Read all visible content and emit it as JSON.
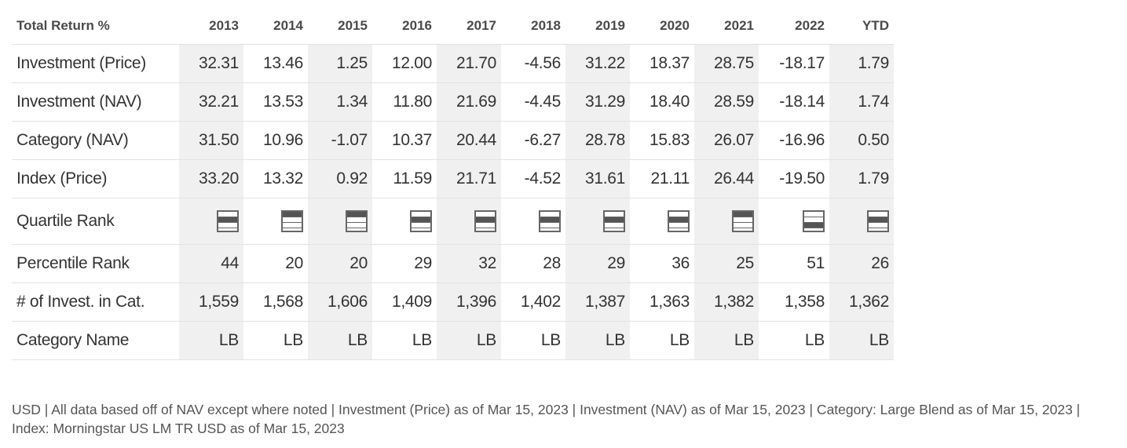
{
  "table": {
    "header_label": "Total Return %",
    "years": [
      "2013",
      "2014",
      "2015",
      "2016",
      "2017",
      "2018",
      "2019",
      "2020",
      "2021",
      "2022",
      "YTD"
    ],
    "shaded_columns": [
      0,
      2,
      4,
      6,
      8,
      10
    ],
    "rows": [
      {
        "label": "Investment (Price)",
        "values": [
          "32.31",
          "13.46",
          "1.25",
          "12.00",
          "21.70",
          "-4.56",
          "31.22",
          "18.37",
          "28.75",
          "-18.17",
          "1.79"
        ]
      },
      {
        "label": "Investment (NAV)",
        "values": [
          "32.21",
          "13.53",
          "1.34",
          "11.80",
          "21.69",
          "-4.45",
          "31.29",
          "18.40",
          "28.59",
          "-18.14",
          "1.74"
        ]
      },
      {
        "label": "Category (NAV)",
        "values": [
          "31.50",
          "10.96",
          "-1.07",
          "10.37",
          "20.44",
          "-6.27",
          "28.78",
          "15.83",
          "26.07",
          "-16.96",
          "0.50"
        ]
      },
      {
        "label": "Index (Price)",
        "values": [
          "33.20",
          "13.32",
          "0.92",
          "11.59",
          "21.71",
          "-4.52",
          "31.61",
          "21.11",
          "26.44",
          "-19.50",
          "1.79"
        ]
      }
    ],
    "quartile": {
      "label": "Quartile Rank",
      "icon_name": "quartile-rank-icon",
      "values": [
        2,
        1,
        1,
        2,
        2,
        2,
        2,
        2,
        1,
        3,
        2
      ]
    },
    "rows_after": [
      {
        "label": "Percentile Rank",
        "values": [
          "44",
          "20",
          "20",
          "29",
          "32",
          "28",
          "29",
          "36",
          "25",
          "51",
          "26"
        ]
      },
      {
        "label": "# of Invest. in Cat.",
        "values": [
          "1,559",
          "1,568",
          "1,606",
          "1,409",
          "1,396",
          "1,402",
          "1,387",
          "1,363",
          "1,382",
          "1,358",
          "1,362"
        ]
      },
      {
        "label": "Category Name",
        "values": [
          "LB",
          "LB",
          "LB",
          "LB",
          "LB",
          "LB",
          "LB",
          "LB",
          "LB",
          "LB",
          "LB"
        ]
      }
    ]
  },
  "footnote": {
    "text": "USD | All data based off of NAV except where noted  | Investment (Price) as of Mar 15, 2023  | Investment (NAV) as of Mar 15, 2023  | Category: Large Blend as of Mar 15, 2023  | Index: Morningstar US LM TR USD as of Mar 15, 2023"
  },
  "colors": {
    "shade": "#f0f0f0",
    "text": "#333333",
    "quartile_fill": "#555555"
  }
}
